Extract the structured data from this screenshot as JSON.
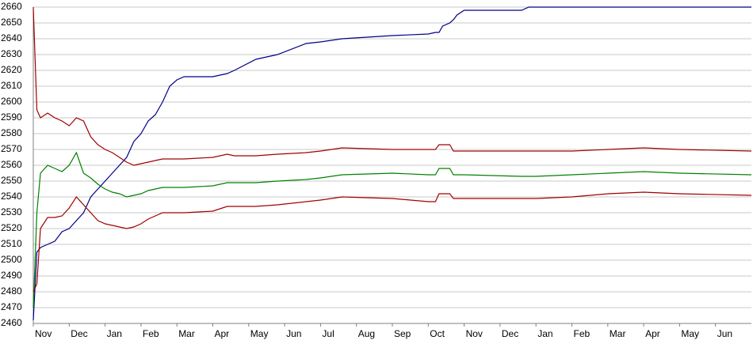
{
  "chart_data": {
    "type": "line",
    "x": [
      0,
      0.5,
      1,
      2,
      3,
      4,
      5,
      6,
      7,
      8,
      9,
      10,
      11,
      12,
      13,
      14,
      15,
      16,
      17,
      18,
      19,
      20,
      21,
      25,
      27,
      28,
      31,
      34,
      38,
      40,
      43,
      50,
      55,
      56,
      56.5,
      57,
      58,
      58.5,
      59,
      60,
      68,
      69,
      70,
      75,
      80,
      85,
      90,
      100
    ],
    "xlim": [
      0,
      100
    ],
    "xticks": [
      {
        "value": 0,
        "label": "Nov"
      },
      {
        "value": 5,
        "label": "Dec"
      },
      {
        "value": 10,
        "label": "Jan"
      },
      {
        "value": 15,
        "label": "Feb"
      },
      {
        "value": 20,
        "label": "Mar"
      },
      {
        "value": 25,
        "label": "Apr"
      },
      {
        "value": 30,
        "label": "May"
      },
      {
        "value": 35,
        "label": "Jun"
      },
      {
        "value": 40,
        "label": "Jul"
      },
      {
        "value": 45,
        "label": "Aug"
      },
      {
        "value": 50,
        "label": "Sep"
      },
      {
        "value": 55,
        "label": "Oct"
      },
      {
        "value": 60,
        "label": "Nov"
      },
      {
        "value": 65,
        "label": "Dec"
      },
      {
        "value": 70,
        "label": "Jan"
      },
      {
        "value": 75,
        "label": "Feb"
      },
      {
        "value": 80,
        "label": "Mar"
      },
      {
        "value": 85,
        "label": "Apr"
      },
      {
        "value": 90,
        "label": "May"
      },
      {
        "value": 95,
        "label": "Jun"
      }
    ],
    "ylim": [
      2460,
      2660
    ],
    "yticks": [
      2460,
      2470,
      2480,
      2490,
      2500,
      2510,
      2520,
      2530,
      2540,
      2550,
      2560,
      2570,
      2580,
      2590,
      2600,
      2610,
      2620,
      2630,
      2640,
      2650,
      2660
    ],
    "grid": true,
    "series": [
      {
        "color": "#00008b",
        "values": [
          2462,
          2505,
          2508,
          2510,
          2512,
          2518,
          2520,
          2525,
          2530,
          2540,
          2545,
          2550,
          2555,
          2560,
          2565,
          2575,
          2580,
          2588,
          2592,
          2600,
          2610,
          2614,
          2616,
          2616,
          2618,
          2620,
          2627,
          2630,
          2637,
          2638,
          2640,
          2642,
          2643,
          2644,
          2644,
          2648,
          2650,
          2652,
          2655,
          2658,
          2658,
          2660,
          2660,
          2660,
          2660,
          2660,
          2660,
          2660
        ]
      },
      {
        "color": "#a00000",
        "values": [
          2660,
          2595,
          2590,
          2593,
          2590,
          2588,
          2585,
          2590,
          2588,
          2578,
          2573,
          2570,
          2568,
          2565,
          2562,
          2560,
          2561,
          2562,
          2563,
          2564,
          2564,
          2564,
          2564,
          2565,
          2567,
          2566,
          2566,
          2567,
          2568,
          2569,
          2571,
          2570,
          2570,
          2570,
          2573,
          2573,
          2573,
          2569,
          2569,
          2569,
          2569,
          2569,
          2569,
          2569,
          2570,
          2571,
          2570,
          2569
        ]
      },
      {
        "color": "#008000",
        "values": [
          2470,
          2530,
          2555,
          2560,
          2558,
          2556,
          2560,
          2568,
          2555,
          2552,
          2548,
          2545,
          2543,
          2542,
          2540,
          2541,
          2542,
          2544,
          2545,
          2546,
          2546,
          2546,
          2546,
          2547,
          2549,
          2549,
          2549,
          2550,
          2551,
          2552,
          2554,
          2555,
          2554,
          2554,
          2558,
          2558,
          2558,
          2554,
          2554,
          2554,
          2553,
          2553,
          2553,
          2554,
          2555,
          2556,
          2555,
          2554
        ]
      },
      {
        "color": "#a00000",
        "values": [
          2480,
          2485,
          2520,
          2527,
          2527,
          2528,
          2533,
          2540,
          2535,
          2530,
          2525,
          2523,
          2522,
          2521,
          2520,
          2521,
          2523,
          2526,
          2528,
          2530,
          2530,
          2530,
          2530,
          2531,
          2534,
          2534,
          2534,
          2535,
          2537,
          2538,
          2540,
          2539,
          2537,
          2537,
          2542,
          2542,
          2542,
          2539,
          2539,
          2539,
          2539,
          2539,
          2539,
          2540,
          2542,
          2543,
          2542,
          2541
        ]
      }
    ]
  }
}
